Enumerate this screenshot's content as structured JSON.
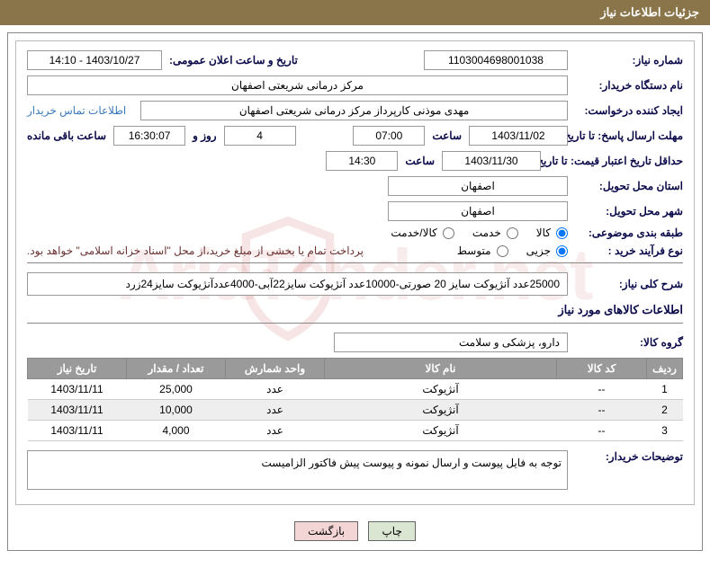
{
  "header": {
    "title": "جزئیات اطلاعات نیاز"
  },
  "labels": {
    "need_number": "شماره نیاز:",
    "announce_datetime": "تاریخ و ساعت اعلان عمومی:",
    "buyer_org": "نام دستگاه خریدار:",
    "requester": "ایجاد کننده درخواست:",
    "contact_link": "اطلاعات تماس خریدار",
    "response_deadline": "مهلت ارسال پاسخ: تا تاریخ:",
    "hour": "ساعت",
    "days_and": "روز و",
    "remaining": "ساعت باقی مانده",
    "price_validity": "حداقل تاریخ اعتبار قیمت: تا تاریخ:",
    "delivery_province": "استان محل تحویل:",
    "delivery_city": "شهر محل تحویل:",
    "subject_class": "طبقه بندی موضوعی:",
    "purchase_type": "نوع فرآیند خرید :",
    "payment_note": "پرداخت تمام یا بخشی از مبلغ خرید،از محل \"اسناد خزانه اسلامی\" خواهد بود.",
    "need_desc": "شرح کلی نیاز:",
    "goods_info": "اطلاعات کالاهای مورد نیاز",
    "goods_group": "گروه کالا:",
    "buyer_notes": "توضیحات خریدار:"
  },
  "fields": {
    "need_number": "1103004698001038",
    "announce_datetime": "1403/10/27 - 14:10",
    "buyer_org": "مرکز درمانی شریعتی اصفهان",
    "requester": "مهدی موذنی کارپرداز مرکز درمانی شریعتی اصفهان",
    "response_date": "1403/11/02",
    "response_time": "07:00",
    "remaining_days": "4",
    "remaining_time": "16:30:07",
    "price_validity_date": "1403/11/30",
    "price_validity_time": "14:30",
    "province": "اصفهان",
    "city": "اصفهان",
    "need_desc": "25000عدد آنژیوکت سایز 20 صورتی-10000عدد آنژیوکت سایز22آبی-4000عددآنژیوکت سایز24زرد",
    "goods_group": "دارو، پزشکی و سلامت",
    "buyer_notes": "توجه به فایل پیوست و ارسال نمونه و پیوست پیش فاکتور الزامیست"
  },
  "radios": {
    "subject": {
      "options": [
        "کالا",
        "خدمت",
        "کالا/خدمت"
      ],
      "selected": 0
    },
    "purchase": {
      "options": [
        "جزیی",
        "متوسط"
      ],
      "selected": 0
    }
  },
  "table": {
    "columns": [
      "ردیف",
      "کد کالا",
      "نام کالا",
      "واحد شمارش",
      "تعداد / مقدار",
      "تاریخ نیاز"
    ],
    "col_widths": [
      "40px",
      "100px",
      "auto",
      "110px",
      "110px",
      "110px"
    ],
    "rows": [
      [
        "1",
        "--",
        "آنژیوکت",
        "عدد",
        "25,000",
        "1403/11/11"
      ],
      [
        "2",
        "--",
        "آنژیوکت",
        "عدد",
        "10,000",
        "1403/11/11"
      ],
      [
        "3",
        "--",
        "آنژیوکت",
        "عدد",
        "4,000",
        "1403/11/11"
      ]
    ]
  },
  "buttons": {
    "print": "چاپ",
    "back": "بازگشت"
  },
  "colors": {
    "header_bg": "#8a7449",
    "th_bg": "#9a9a9a",
    "label_color": "#0a0a4a",
    "link_color": "#3a7abf",
    "note_color": "#6a3030"
  }
}
